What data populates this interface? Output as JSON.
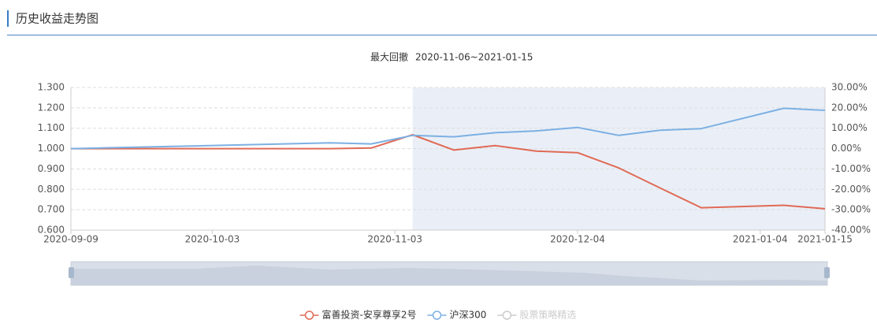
{
  "chart_data": {
    "type": "line",
    "header": "历史收益走势图",
    "subtitle_label": "最大回撤",
    "subtitle_range": "2020-11-06~2021-01-15",
    "x": [
      "2020-09-09",
      "2020-10-23",
      "2020-10-30",
      "2020-11-06",
      "2020-11-13",
      "2020-11-20",
      "2020-11-27",
      "2020-12-04",
      "2020-12-11",
      "2020-12-18",
      "2020-12-25",
      "2021-01-08",
      "2021-01-15"
    ],
    "xlim": [
      "2020-09-09",
      "2021-01-15"
    ],
    "xticks": [
      "2020-09-09",
      "2020-10-03",
      "2020-11-03",
      "2020-12-04",
      "2021-01-04",
      "2021-01-15"
    ],
    "ylim": [
      0.6,
      1.3
    ],
    "yticks": [
      {
        "value": 0.6,
        "label": "0.600"
      },
      {
        "value": 0.7,
        "label": "0.700"
      },
      {
        "value": 0.8,
        "label": "0.800"
      },
      {
        "value": 0.9,
        "label": "0.900"
      },
      {
        "value": 1.0,
        "label": "1.000"
      },
      {
        "value": 1.1,
        "label": "1.100"
      },
      {
        "value": 1.2,
        "label": "1.200"
      },
      {
        "value": 1.3,
        "label": "1.300"
      }
    ],
    "y2lim": [
      -40,
      30
    ],
    "y2ticks": [
      {
        "value": -40,
        "label": "-40.00%"
      },
      {
        "value": -30,
        "label": "-30.00%"
      },
      {
        "value": -20,
        "label": "-20.00%"
      },
      {
        "value": -10,
        "label": "-10.00%"
      },
      {
        "value": 0,
        "label": "0.00%"
      },
      {
        "value": 10,
        "label": "10.00%"
      },
      {
        "value": 20,
        "label": "20.00%"
      },
      {
        "value": 30,
        "label": "30.00%"
      }
    ],
    "grid": true,
    "series": [
      {
        "name": "富善投资-安享尊享2号",
        "color": "#e06a56",
        "values": [
          1.0,
          1.0,
          1.003,
          1.068,
          0.993,
          1.015,
          0.988,
          0.98,
          0.905,
          0.807,
          0.71,
          0.722,
          0.705
        ]
      },
      {
        "name": "沪深300",
        "color": "#7cb0e3",
        "axis": "y2",
        "values": [
          0,
          2.8,
          2.3,
          6.5,
          5.8,
          7.8,
          8.7,
          10.4,
          6.5,
          9.0,
          9.8,
          19.8,
          18.8
        ]
      },
      {
        "name": "股票策略精选",
        "color": "#cccccc",
        "visible": false,
        "values": [
          null,
          null,
          null,
          null,
          null,
          null,
          null,
          null,
          null,
          null,
          null,
          null,
          null
        ]
      }
    ]
  }
}
